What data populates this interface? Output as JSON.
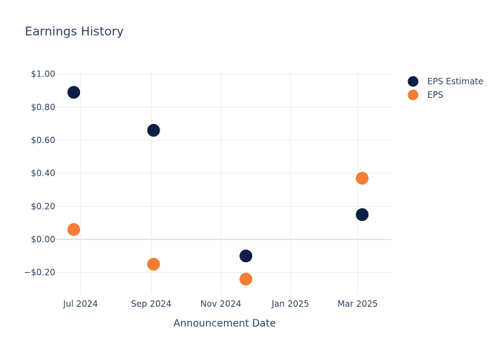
{
  "chart_data": {
    "type": "scatter",
    "title": "Earnings History",
    "xlabel": "Announcement Date",
    "ylabel": "",
    "x_ticks": [
      {
        "date": "2024-07-01",
        "label": "Jul 2024"
      },
      {
        "date": "2024-09-01",
        "label": "Sep 2024"
      },
      {
        "date": "2024-11-01",
        "label": "Nov 2024"
      },
      {
        "date": "2025-01-01",
        "label": "Jan 2025"
      },
      {
        "date": "2025-03-01",
        "label": "Mar 2025"
      }
    ],
    "xlim": [
      "2024-06-10",
      "2025-03-31"
    ],
    "y_ticks": [
      {
        "value": 1.0,
        "label": "$1.00"
      },
      {
        "value": 0.8,
        "label": "$0.80"
      },
      {
        "value": 0.6,
        "label": "$0.60"
      },
      {
        "value": 0.4,
        "label": "$0.40"
      },
      {
        "value": 0.2,
        "label": "$0.20"
      },
      {
        "value": 0.0,
        "label": "$0.00"
      },
      {
        "value": -0.2,
        "label": "−$0.20"
      }
    ],
    "ylim": [
      -0.33,
      1.02
    ],
    "grid": true,
    "legend_position": "top-right",
    "series": [
      {
        "name": "EPS Estimate",
        "color": "#0d1f45",
        "points": [
          {
            "x": "2024-06-25",
            "y": 0.89
          },
          {
            "x": "2024-09-03",
            "y": 0.66
          },
          {
            "x": "2024-11-23",
            "y": -0.1
          },
          {
            "x": "2025-03-05",
            "y": 0.15
          }
        ]
      },
      {
        "name": "EPS",
        "color": "#f47c35",
        "points": [
          {
            "x": "2024-06-25",
            "y": 0.06
          },
          {
            "x": "2024-09-03",
            "y": -0.15
          },
          {
            "x": "2024-11-23",
            "y": -0.24
          },
          {
            "x": "2025-03-05",
            "y": 0.37
          }
        ]
      }
    ]
  }
}
